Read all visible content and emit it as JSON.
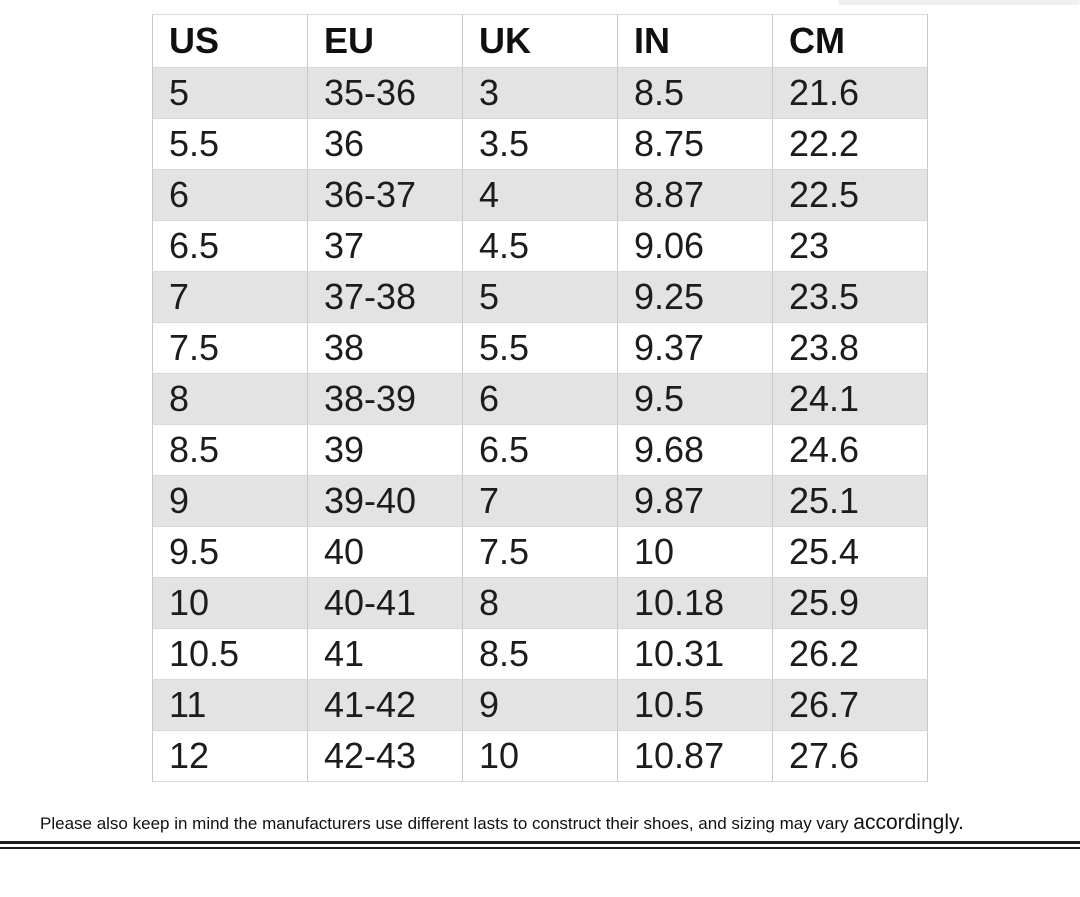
{
  "table": {
    "columns": [
      "US",
      "EU",
      "UK",
      "IN",
      "CM"
    ],
    "rows": [
      [
        "5",
        "35-36",
        "3",
        "8.5",
        "21.6"
      ],
      [
        "5.5",
        "36",
        "3.5",
        "8.75",
        "22.2"
      ],
      [
        "6",
        "36-37",
        "4",
        "8.87",
        "22.5"
      ],
      [
        "6.5",
        "37",
        "4.5",
        "9.06",
        "23"
      ],
      [
        "7",
        "37-38",
        "5",
        "9.25",
        "23.5"
      ],
      [
        "7.5",
        "38",
        "5.5",
        "9.37",
        "23.8"
      ],
      [
        "8",
        "38-39",
        "6",
        "9.5",
        "24.1"
      ],
      [
        "8.5",
        "39",
        "6.5",
        "9.68",
        "24.6"
      ],
      [
        "9",
        "39-40",
        "7",
        "9.87",
        "25.1"
      ],
      [
        "9.5",
        "40",
        "7.5",
        "10",
        "25.4"
      ],
      [
        "10",
        "40-41",
        "8",
        "10.18",
        "25.9"
      ],
      [
        "10.5",
        "41",
        "8.5",
        "10.31",
        "26.2"
      ],
      [
        "11",
        "41-42",
        "9",
        "10.5",
        "26.7"
      ],
      [
        "12",
        "42-43",
        "10",
        "10.87",
        "27.6"
      ]
    ]
  },
  "disclaimer": {
    "text": "Please also keep in mind the manufacturers use different lasts to construct their shoes, and sizing may vary",
    "emphasis": "accordingly."
  },
  "colors": {
    "row_alt": "#e3e3e3",
    "border_vertical": "#c9c9c9",
    "border_horizontal": "#d8d8d8",
    "text": "#1c1c1c",
    "rule": "#1b1b1b"
  }
}
